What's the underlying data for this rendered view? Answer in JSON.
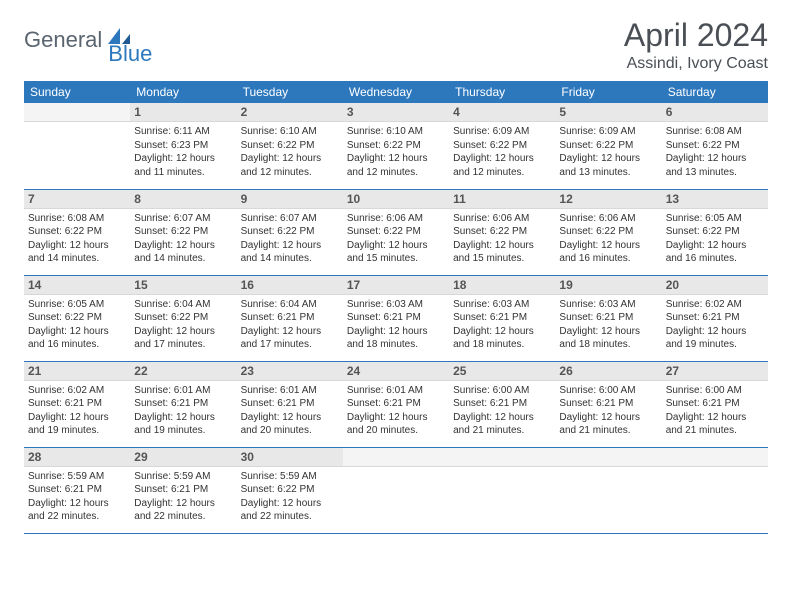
{
  "logo": {
    "word1": "General",
    "word2": "Blue"
  },
  "title": "April 2024",
  "location": "Assindi, Ivory Coast",
  "header_bg": "#2d78bd",
  "header_fg": "#ffffff",
  "daynum_bg": "#e8e8e8",
  "text_color": "#333333",
  "font_family": "Arial",
  "day_headers": [
    "Sunday",
    "Monday",
    "Tuesday",
    "Wednesday",
    "Thursday",
    "Friday",
    "Saturday"
  ],
  "weeks": [
    [
      {
        "n": "",
        "sr": "",
        "ss": "",
        "dl": ""
      },
      {
        "n": "1",
        "sr": "6:11 AM",
        "ss": "6:23 PM",
        "dl": "12 hours and 11 minutes."
      },
      {
        "n": "2",
        "sr": "6:10 AM",
        "ss": "6:22 PM",
        "dl": "12 hours and 12 minutes."
      },
      {
        "n": "3",
        "sr": "6:10 AM",
        "ss": "6:22 PM",
        "dl": "12 hours and 12 minutes."
      },
      {
        "n": "4",
        "sr": "6:09 AM",
        "ss": "6:22 PM",
        "dl": "12 hours and 12 minutes."
      },
      {
        "n": "5",
        "sr": "6:09 AM",
        "ss": "6:22 PM",
        "dl": "12 hours and 13 minutes."
      },
      {
        "n": "6",
        "sr": "6:08 AM",
        "ss": "6:22 PM",
        "dl": "12 hours and 13 minutes."
      }
    ],
    [
      {
        "n": "7",
        "sr": "6:08 AM",
        "ss": "6:22 PM",
        "dl": "12 hours and 14 minutes."
      },
      {
        "n": "8",
        "sr": "6:07 AM",
        "ss": "6:22 PM",
        "dl": "12 hours and 14 minutes."
      },
      {
        "n": "9",
        "sr": "6:07 AM",
        "ss": "6:22 PM",
        "dl": "12 hours and 14 minutes."
      },
      {
        "n": "10",
        "sr": "6:06 AM",
        "ss": "6:22 PM",
        "dl": "12 hours and 15 minutes."
      },
      {
        "n": "11",
        "sr": "6:06 AM",
        "ss": "6:22 PM",
        "dl": "12 hours and 15 minutes."
      },
      {
        "n": "12",
        "sr": "6:06 AM",
        "ss": "6:22 PM",
        "dl": "12 hours and 16 minutes."
      },
      {
        "n": "13",
        "sr": "6:05 AM",
        "ss": "6:22 PM",
        "dl": "12 hours and 16 minutes."
      }
    ],
    [
      {
        "n": "14",
        "sr": "6:05 AM",
        "ss": "6:22 PM",
        "dl": "12 hours and 16 minutes."
      },
      {
        "n": "15",
        "sr": "6:04 AM",
        "ss": "6:22 PM",
        "dl": "12 hours and 17 minutes."
      },
      {
        "n": "16",
        "sr": "6:04 AM",
        "ss": "6:21 PM",
        "dl": "12 hours and 17 minutes."
      },
      {
        "n": "17",
        "sr": "6:03 AM",
        "ss": "6:21 PM",
        "dl": "12 hours and 18 minutes."
      },
      {
        "n": "18",
        "sr": "6:03 AM",
        "ss": "6:21 PM",
        "dl": "12 hours and 18 minutes."
      },
      {
        "n": "19",
        "sr": "6:03 AM",
        "ss": "6:21 PM",
        "dl": "12 hours and 18 minutes."
      },
      {
        "n": "20",
        "sr": "6:02 AM",
        "ss": "6:21 PM",
        "dl": "12 hours and 19 minutes."
      }
    ],
    [
      {
        "n": "21",
        "sr": "6:02 AM",
        "ss": "6:21 PM",
        "dl": "12 hours and 19 minutes."
      },
      {
        "n": "22",
        "sr": "6:01 AM",
        "ss": "6:21 PM",
        "dl": "12 hours and 19 minutes."
      },
      {
        "n": "23",
        "sr": "6:01 AM",
        "ss": "6:21 PM",
        "dl": "12 hours and 20 minutes."
      },
      {
        "n": "24",
        "sr": "6:01 AM",
        "ss": "6:21 PM",
        "dl": "12 hours and 20 minutes."
      },
      {
        "n": "25",
        "sr": "6:00 AM",
        "ss": "6:21 PM",
        "dl": "12 hours and 21 minutes."
      },
      {
        "n": "26",
        "sr": "6:00 AM",
        "ss": "6:21 PM",
        "dl": "12 hours and 21 minutes."
      },
      {
        "n": "27",
        "sr": "6:00 AM",
        "ss": "6:21 PM",
        "dl": "12 hours and 21 minutes."
      }
    ],
    [
      {
        "n": "28",
        "sr": "5:59 AM",
        "ss": "6:21 PM",
        "dl": "12 hours and 22 minutes."
      },
      {
        "n": "29",
        "sr": "5:59 AM",
        "ss": "6:21 PM",
        "dl": "12 hours and 22 minutes."
      },
      {
        "n": "30",
        "sr": "5:59 AM",
        "ss": "6:22 PM",
        "dl": "12 hours and 22 minutes."
      },
      {
        "n": "",
        "sr": "",
        "ss": "",
        "dl": ""
      },
      {
        "n": "",
        "sr": "",
        "ss": "",
        "dl": ""
      },
      {
        "n": "",
        "sr": "",
        "ss": "",
        "dl": ""
      },
      {
        "n": "",
        "sr": "",
        "ss": "",
        "dl": ""
      }
    ]
  ],
  "labels": {
    "sunrise": "Sunrise:",
    "sunset": "Sunset:",
    "daylight": "Daylight:"
  }
}
